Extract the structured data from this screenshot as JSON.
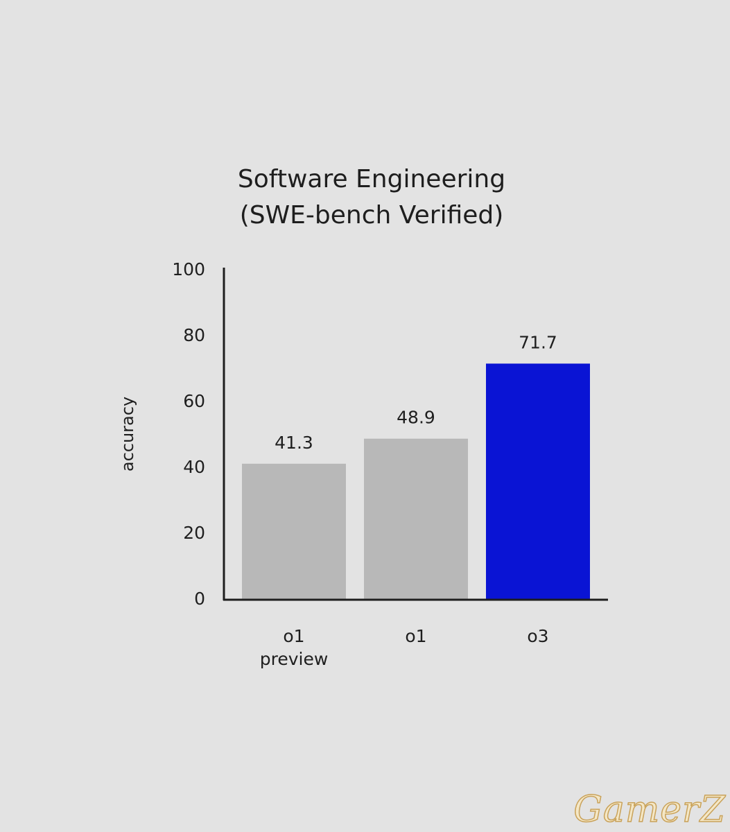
{
  "chart_data": {
    "type": "bar",
    "title": [
      "Software Engineering",
      "(SWE-bench Verified)"
    ],
    "ylabel": "accuracy",
    "xlabel": "",
    "ylim": [
      0,
      100
    ],
    "yticks": [
      0,
      20,
      40,
      60,
      80,
      100
    ],
    "categories": [
      [
        "o1",
        "preview"
      ],
      [
        "o1"
      ],
      [
        "o3"
      ]
    ],
    "values": [
      41.3,
      48.9,
      71.7
    ],
    "value_labels": [
      "41.3",
      "48.9",
      "71.7"
    ],
    "bar_colors": [
      "#b8b8b8",
      "#b8b8b8",
      "#0a14d4"
    ],
    "axis_color": "#1e1e1e",
    "grid": false,
    "legend": "none"
  },
  "watermark": "GamerZ"
}
